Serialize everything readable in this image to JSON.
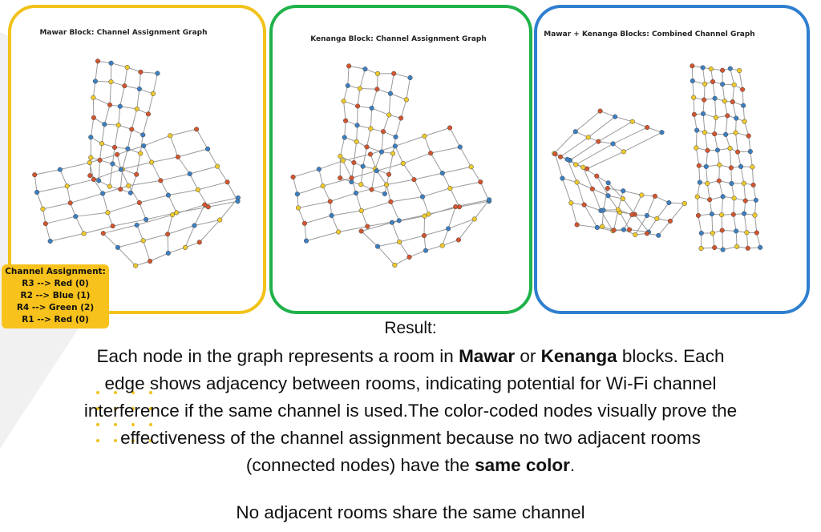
{
  "panels": {
    "mawar_title": "Mawar Block: Channel Assignment Graph",
    "kenanga_title": "Kenanga Block: Channel Assignment Graph",
    "combined_title": "Mawar + Kenanga Blocks: Combined Channel Graph"
  },
  "colors": {
    "red": "#d2552f",
    "blue": "#3c7fc1",
    "yellow": "#eec92b",
    "edge": "#9a9a9a",
    "mawar_border": "#f2c21a",
    "kenanga_border": "#20b24a",
    "combined_border": "#2f7fd0"
  },
  "legend": {
    "title": "Channel Assignment:",
    "items": [
      "R3 --> Red (0)",
      "R2 --> Blue (1)",
      "R4 --> Green (2)",
      "R1 --> Red (0)"
    ]
  },
  "result": {
    "heading": "Result:",
    "p1_a": "Each node in the graph represents a room in ",
    "mawar": "Mawar",
    "p1_b": " or ",
    "kenanga": "Kenanga",
    "p1_c": " blocks. Each",
    "line2": "edge shows adjacency between rooms, indicating potential for Wi-Fi channel",
    "line3": "interference if the same channel is used.The color-coded nodes visually prove the",
    "line4": "effectiveness of the channel assignment because no two adjacent rooms",
    "line5_a": "(connected nodes) have the ",
    "same_color": "same color",
    "line5_b": ".",
    "note": "No adjacent rooms share the same channel"
  }
}
